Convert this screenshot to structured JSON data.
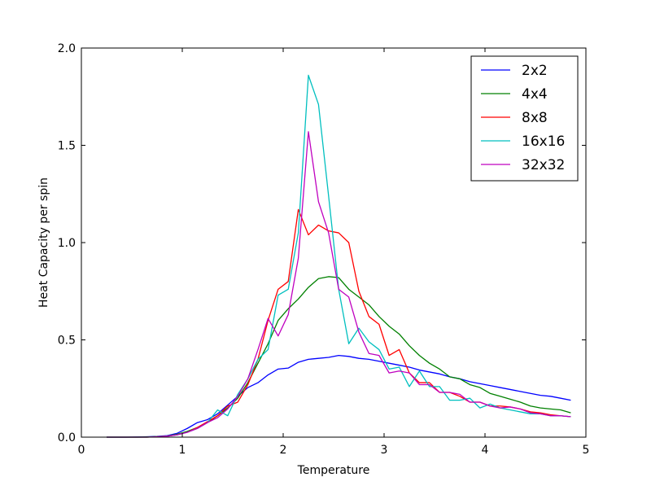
{
  "chart_data": {
    "type": "line",
    "title": "",
    "xlabel": "Temperature",
    "ylabel": "Heat Capacity per spin",
    "xlim": [
      0,
      5
    ],
    "ylim": [
      0,
      2.0
    ],
    "xticks": [
      0,
      1,
      2,
      3,
      4,
      5
    ],
    "xtick_labels": [
      "0",
      "1",
      "2",
      "3",
      "4",
      "5"
    ],
    "yticks": [
      0,
      0.5,
      1.0,
      1.5,
      2.0
    ],
    "ytick_labels": [
      "0.0",
      "0.5",
      "1.0",
      "1.5",
      "2.0"
    ],
    "grid": false,
    "legend_position": "top-right",
    "x": [
      0.25,
      0.35,
      0.45,
      0.55,
      0.65,
      0.75,
      0.85,
      0.95,
      1.05,
      1.15,
      1.25,
      1.35,
      1.45,
      1.55,
      1.65,
      1.75,
      1.85,
      1.95,
      2.05,
      2.15,
      2.25,
      2.35,
      2.45,
      2.55,
      2.65,
      2.75,
      2.85,
      2.95,
      3.05,
      3.15,
      3.25,
      3.35,
      3.45,
      3.55,
      3.65,
      3.75,
      3.85,
      3.95,
      4.05,
      4.15,
      4.25,
      4.35,
      4.45,
      4.55,
      4.65,
      4.75,
      4.85
    ],
    "series": [
      {
        "name": "2x2",
        "color": "#0000ff",
        "values": [
          0.0,
          0.0,
          0.0,
          0.001,
          0.002,
          0.004,
          0.008,
          0.02,
          0.045,
          0.075,
          0.09,
          0.12,
          0.165,
          0.21,
          0.255,
          0.28,
          0.32,
          0.35,
          0.355,
          0.385,
          0.4,
          0.405,
          0.41,
          0.42,
          0.415,
          0.405,
          0.4,
          0.39,
          0.38,
          0.37,
          0.36,
          0.345,
          0.335,
          0.325,
          0.31,
          0.3,
          0.285,
          0.275,
          0.265,
          0.255,
          0.245,
          0.235,
          0.225,
          0.215,
          0.21,
          0.2,
          0.19
        ]
      },
      {
        "name": "4x4",
        "color": "#008000",
        "values": [
          0.0,
          0.0,
          0.0,
          0.0,
          0.001,
          0.003,
          0.006,
          0.015,
          0.03,
          0.05,
          0.075,
          0.11,
          0.15,
          0.2,
          0.28,
          0.38,
          0.48,
          0.6,
          0.66,
          0.71,
          0.77,
          0.815,
          0.825,
          0.82,
          0.76,
          0.72,
          0.68,
          0.62,
          0.57,
          0.53,
          0.47,
          0.42,
          0.38,
          0.35,
          0.31,
          0.3,
          0.27,
          0.255,
          0.225,
          0.21,
          0.195,
          0.18,
          0.16,
          0.15,
          0.145,
          0.14,
          0.125
        ]
      },
      {
        "name": "8x8",
        "color": "#ff0000",
        "values": [
          0.0,
          0.0,
          0.0,
          0.0,
          0.0,
          0.002,
          0.005,
          0.012,
          0.025,
          0.05,
          0.08,
          0.11,
          0.16,
          0.18,
          0.27,
          0.4,
          0.6,
          0.76,
          0.8,
          1.17,
          1.04,
          1.09,
          1.06,
          1.05,
          1.0,
          0.75,
          0.62,
          0.58,
          0.42,
          0.45,
          0.33,
          0.28,
          0.28,
          0.23,
          0.23,
          0.21,
          0.18,
          0.18,
          0.16,
          0.16,
          0.155,
          0.145,
          0.13,
          0.125,
          0.115,
          0.11,
          0.105
        ]
      },
      {
        "name": "16x16",
        "color": "#00bfbf",
        "values": [
          0.0,
          0.0,
          0.0,
          0.0,
          0.0,
          0.002,
          0.005,
          0.012,
          0.025,
          0.045,
          0.075,
          0.14,
          0.11,
          0.22,
          0.3,
          0.4,
          0.45,
          0.73,
          0.76,
          1.05,
          1.86,
          1.71,
          1.24,
          0.76,
          0.48,
          0.56,
          0.49,
          0.45,
          0.35,
          0.36,
          0.26,
          0.34,
          0.26,
          0.26,
          0.19,
          0.19,
          0.2,
          0.15,
          0.17,
          0.15,
          0.14,
          0.13,
          0.12,
          0.12,
          0.11,
          0.11,
          0.105
        ]
      },
      {
        "name": "32x32",
        "color": "#bf00bf",
        "values": [
          0.0,
          0.0,
          0.0,
          0.0,
          0.0,
          0.002,
          0.005,
          0.012,
          0.025,
          0.045,
          0.075,
          0.1,
          0.145,
          0.21,
          0.3,
          0.45,
          0.61,
          0.52,
          0.63,
          0.92,
          1.57,
          1.21,
          1.05,
          0.76,
          0.72,
          0.54,
          0.43,
          0.42,
          0.33,
          0.34,
          0.33,
          0.27,
          0.27,
          0.23,
          0.23,
          0.22,
          0.18,
          0.18,
          0.16,
          0.15,
          0.155,
          0.145,
          0.125,
          0.12,
          0.11,
          0.11,
          0.105
        ]
      }
    ]
  }
}
